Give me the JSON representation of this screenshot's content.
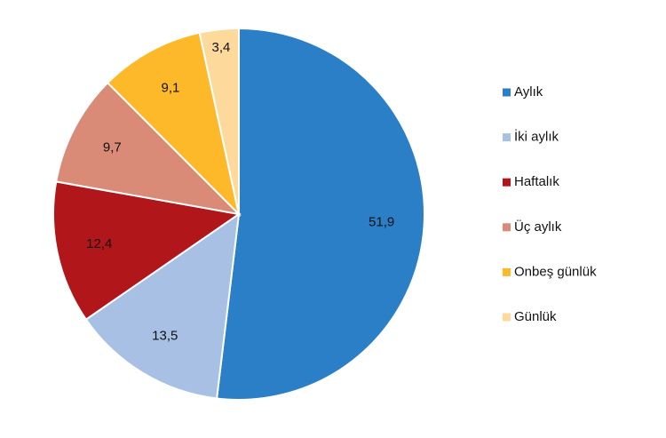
{
  "chart_data": {
    "type": "pie",
    "categories": [
      "Aylık",
      "İki aylık",
      "Haftalık",
      "Üç aylık",
      "Onbeş günlük",
      "Günlük"
    ],
    "values": [
      51.9,
      13.5,
      12.4,
      9.7,
      9.1,
      3.4
    ],
    "value_labels": [
      "51,9",
      "13,5",
      "12,4",
      "9,7",
      "9,1",
      "3,4"
    ],
    "colors": [
      "#2b7fc7",
      "#a7c0e4",
      "#b0161a",
      "#d98b77",
      "#fdb92a",
      "#fdd99b"
    ],
    "legend": "right"
  }
}
